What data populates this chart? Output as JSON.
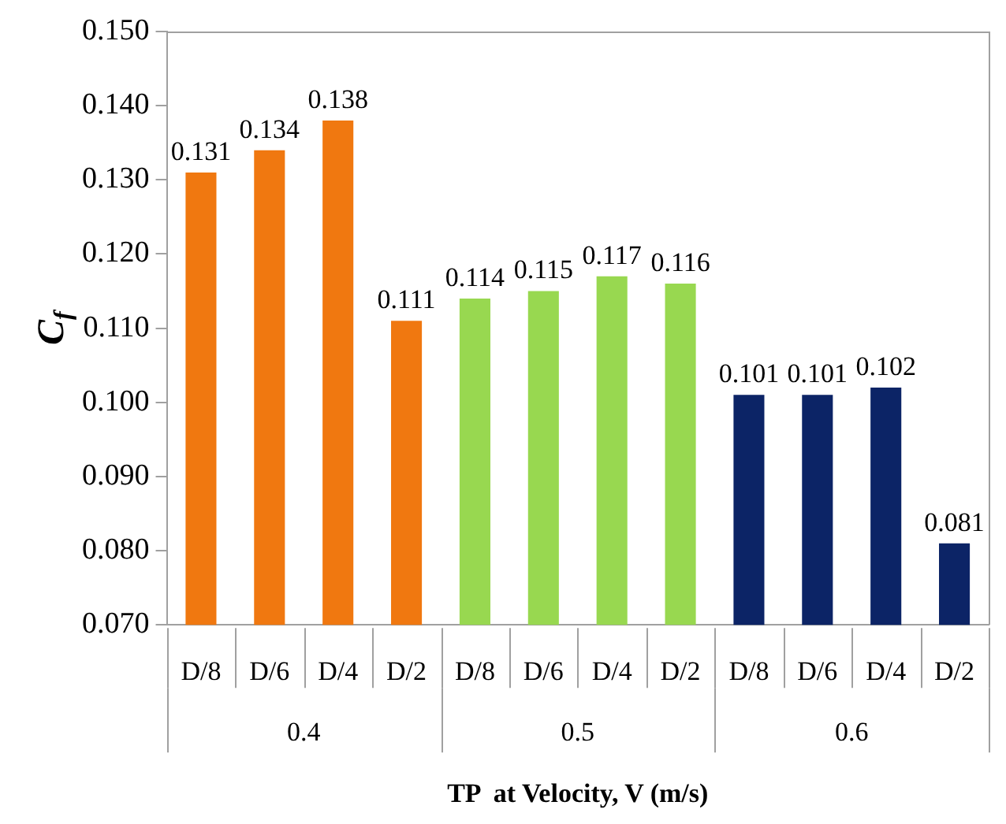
{
  "chart_data": {
    "type": "bar",
    "ylabel": "C$_{f}$",
    "xlabel": "TP  at Velocity, V (m/s)",
    "categories": [
      "D/8",
      "D/6",
      "D/4",
      "D/2",
      "D/8",
      "D/6",
      "D/4",
      "D/2",
      "D/8",
      "D/6",
      "D/4",
      "D/2"
    ],
    "values": [
      0.131,
      0.134,
      0.138,
      0.111,
      0.114,
      0.115,
      0.117,
      0.116,
      0.101,
      0.101,
      0.102,
      0.081
    ],
    "colors": [
      "#f07810",
      "#f07810",
      "#f07810",
      "#f07810",
      "#98d850",
      "#98d850",
      "#98d850",
      "#98d850",
      "#0c2466",
      "#0c2466",
      "#0c2466",
      "#0c2466"
    ],
    "ylim": [
      0.07,
      0.15
    ],
    "yticks": [
      {
        "value": 0.07,
        "label": "0.070"
      },
      {
        "value": 0.08,
        "label": "0.080"
      },
      {
        "value": 0.09,
        "label": "0.090"
      },
      {
        "value": 0.1,
        "label": "0.100"
      },
      {
        "value": 0.11,
        "label": "0.110"
      },
      {
        "value": 0.12,
        "label": "0.120"
      },
      {
        "value": 0.13,
        "label": "0.130"
      },
      {
        "value": 0.14,
        "label": "0.140"
      },
      {
        "value": 0.15,
        "label": "0.150"
      }
    ],
    "data_labels": true,
    "grid": false,
    "legend": false,
    "annotations": [
      "0.4",
      "0.5",
      "0.6"
    ]
  }
}
